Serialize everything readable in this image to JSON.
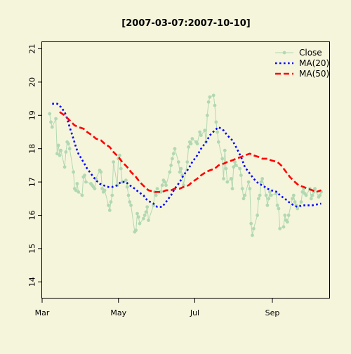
{
  "chart_data": {
    "type": "line",
    "title": "[2007-03-07:2007-10-10]",
    "xlabel": "",
    "ylabel": "",
    "x_range": [
      "2007-03-01",
      "2007-10-17"
    ],
    "ylim": [
      13.5,
      21.2
    ],
    "y_ticks": [
      14,
      15,
      16,
      17,
      18,
      19,
      20,
      21
    ],
    "x_ticks": [
      {
        "date": "2007-03-01",
        "label": "Mar"
      },
      {
        "date": "2007-05-01",
        "label": "May"
      },
      {
        "date": "2007-07-01",
        "label": "Jul"
      },
      {
        "date": "2007-09-01",
        "label": "Sep"
      }
    ],
    "grid": false,
    "legend_position": "top-right",
    "background_color": "#f5f5dc",
    "series": [
      {
        "name": "Close",
        "color": "#b2d8b2",
        "style": "solid-with-markers",
        "points": [
          [
            "2007-03-07",
            19.05
          ],
          [
            "2007-03-08",
            18.8
          ],
          [
            "2007-03-09",
            18.65
          ],
          [
            "2007-03-12",
            18.9
          ],
          [
            "2007-03-13",
            17.85
          ],
          [
            "2007-03-14",
            18.1
          ],
          [
            "2007-03-15",
            17.8
          ],
          [
            "2007-03-16",
            17.95
          ],
          [
            "2007-03-19",
            17.45
          ],
          [
            "2007-03-20",
            17.9
          ],
          [
            "2007-03-21",
            18.2
          ],
          [
            "2007-03-22",
            18.15
          ],
          [
            "2007-03-23",
            18.0
          ],
          [
            "2007-03-26",
            17.3
          ],
          [
            "2007-03-27",
            16.8
          ],
          [
            "2007-03-28",
            16.75
          ],
          [
            "2007-03-29",
            16.95
          ],
          [
            "2007-03-30",
            16.7
          ],
          [
            "2007-04-02",
            16.6
          ],
          [
            "2007-04-03",
            17.15
          ],
          [
            "2007-04-04",
            17.2
          ],
          [
            "2007-04-05",
            17.0
          ],
          [
            "2007-04-09",
            16.95
          ],
          [
            "2007-04-10",
            16.9
          ],
          [
            "2007-04-11",
            16.85
          ],
          [
            "2007-04-12",
            16.8
          ],
          [
            "2007-04-13",
            17.1
          ],
          [
            "2007-04-16",
            17.35
          ],
          [
            "2007-04-17",
            17.3
          ],
          [
            "2007-04-18",
            16.8
          ],
          [
            "2007-04-19",
            16.7
          ],
          [
            "2007-04-20",
            16.75
          ],
          [
            "2007-04-23",
            16.3
          ],
          [
            "2007-04-24",
            16.15
          ],
          [
            "2007-04-25",
            16.4
          ],
          [
            "2007-04-26",
            16.6
          ],
          [
            "2007-04-27",
            17.6
          ],
          [
            "2007-04-30",
            16.9
          ],
          [
            "2007-05-01",
            17.7
          ],
          [
            "2007-05-02",
            17.8
          ],
          [
            "2007-05-03",
            17.4
          ],
          [
            "2007-05-04",
            17.0
          ],
          [
            "2007-05-07",
            17.05
          ],
          [
            "2007-05-08",
            16.85
          ],
          [
            "2007-05-09",
            16.6
          ],
          [
            "2007-05-10",
            16.4
          ],
          [
            "2007-05-11",
            16.3
          ],
          [
            "2007-05-14",
            15.5
          ],
          [
            "2007-05-15",
            15.55
          ],
          [
            "2007-05-16",
            16.05
          ],
          [
            "2007-05-17",
            15.95
          ],
          [
            "2007-05-18",
            15.75
          ],
          [
            "2007-05-21",
            15.9
          ],
          [
            "2007-05-22",
            16.0
          ],
          [
            "2007-05-23",
            16.1
          ],
          [
            "2007-05-24",
            16.25
          ],
          [
            "2007-05-25",
            15.85
          ],
          [
            "2007-05-29",
            16.3
          ],
          [
            "2007-05-30",
            16.7
          ],
          [
            "2007-05-31",
            16.6
          ],
          [
            "2007-06-01",
            16.8
          ],
          [
            "2007-06-04",
            16.7
          ],
          [
            "2007-06-05",
            16.9
          ],
          [
            "2007-06-06",
            17.05
          ],
          [
            "2007-06-07",
            17.0
          ],
          [
            "2007-06-08",
            16.9
          ],
          [
            "2007-06-11",
            17.3
          ],
          [
            "2007-06-12",
            17.5
          ],
          [
            "2007-06-13",
            17.7
          ],
          [
            "2007-06-14",
            17.85
          ],
          [
            "2007-06-15",
            18.0
          ],
          [
            "2007-06-18",
            17.6
          ],
          [
            "2007-06-19",
            17.3
          ],
          [
            "2007-06-20",
            17.4
          ],
          [
            "2007-06-21",
            17.2
          ],
          [
            "2007-06-22",
            16.9
          ],
          [
            "2007-06-25",
            17.6
          ],
          [
            "2007-06-26",
            18.05
          ],
          [
            "2007-06-27",
            18.2
          ],
          [
            "2007-06-28",
            18.15
          ],
          [
            "2007-06-29",
            18.3
          ],
          [
            "2007-07-02",
            18.2
          ],
          [
            "2007-07-03",
            18.15
          ],
          [
            "2007-07-05",
            18.5
          ],
          [
            "2007-07-06",
            18.4
          ],
          [
            "2007-07-09",
            18.55
          ],
          [
            "2007-07-10",
            18.2
          ],
          [
            "2007-07-11",
            19.0
          ],
          [
            "2007-07-12",
            19.4
          ],
          [
            "2007-07-13",
            19.55
          ],
          [
            "2007-07-16",
            19.6
          ],
          [
            "2007-07-17",
            19.3
          ],
          [
            "2007-07-18",
            18.8
          ],
          [
            "2007-07-19",
            18.5
          ],
          [
            "2007-07-20",
            18.2
          ],
          [
            "2007-07-23",
            17.7
          ],
          [
            "2007-07-24",
            17.1
          ],
          [
            "2007-07-25",
            17.95
          ],
          [
            "2007-07-26",
            17.4
          ],
          [
            "2007-07-27",
            17.0
          ],
          [
            "2007-07-30",
            17.1
          ],
          [
            "2007-07-31",
            16.8
          ],
          [
            "2007-08-01",
            17.45
          ],
          [
            "2007-08-02",
            17.6
          ],
          [
            "2007-08-03",
            17.5
          ],
          [
            "2007-08-06",
            17.4
          ],
          [
            "2007-08-07",
            17.2
          ],
          [
            "2007-08-08",
            16.8
          ],
          [
            "2007-08-09",
            16.5
          ],
          [
            "2007-08-10",
            16.6
          ],
          [
            "2007-08-13",
            17.0
          ],
          [
            "2007-08-14",
            16.8
          ],
          [
            "2007-08-15",
            15.75
          ],
          [
            "2007-08-16",
            15.4
          ],
          [
            "2007-08-17",
            15.6
          ],
          [
            "2007-08-20",
            16.0
          ],
          [
            "2007-08-21",
            16.5
          ],
          [
            "2007-08-22",
            16.6
          ],
          [
            "2007-08-23",
            17.0
          ],
          [
            "2007-08-24",
            17.1
          ],
          [
            "2007-08-27",
            16.6
          ],
          [
            "2007-08-28",
            16.3
          ],
          [
            "2007-08-29",
            16.5
          ],
          [
            "2007-08-30",
            16.7
          ],
          [
            "2007-08-31",
            16.6
          ],
          [
            "2007-09-04",
            16.65
          ],
          [
            "2007-09-05",
            16.3
          ],
          [
            "2007-09-06",
            16.2
          ],
          [
            "2007-09-07",
            15.6
          ],
          [
            "2007-09-10",
            15.65
          ],
          [
            "2007-09-11",
            16.0
          ],
          [
            "2007-09-12",
            15.85
          ],
          [
            "2007-09-13",
            15.8
          ],
          [
            "2007-09-14",
            16.0
          ],
          [
            "2007-09-17",
            16.5
          ],
          [
            "2007-09-18",
            16.6
          ],
          [
            "2007-09-19",
            16.4
          ],
          [
            "2007-09-20",
            16.3
          ],
          [
            "2007-09-21",
            16.2
          ],
          [
            "2007-09-24",
            16.4
          ],
          [
            "2007-09-25",
            16.7
          ],
          [
            "2007-09-26",
            16.8
          ],
          [
            "2007-09-27",
            16.65
          ],
          [
            "2007-09-28",
            16.6
          ],
          [
            "2007-10-01",
            16.8
          ],
          [
            "2007-10-02",
            16.5
          ],
          [
            "2007-10-03",
            16.6
          ],
          [
            "2007-10-04",
            16.7
          ],
          [
            "2007-10-05",
            16.8
          ],
          [
            "2007-10-08",
            16.55
          ],
          [
            "2007-10-09",
            16.6
          ],
          [
            "2007-10-10",
            16.7
          ]
        ]
      },
      {
        "name": "MA(20)",
        "color": "#0000ff",
        "style": "dotted",
        "points": [
          [
            "2007-03-09",
            19.35
          ],
          [
            "2007-03-13",
            19.35
          ],
          [
            "2007-03-16",
            19.25
          ],
          [
            "2007-03-19",
            19.1
          ],
          [
            "2007-03-21",
            18.9
          ],
          [
            "2007-03-23",
            18.65
          ],
          [
            "2007-03-26",
            18.3
          ],
          [
            "2007-03-28",
            18.05
          ],
          [
            "2007-03-30",
            17.85
          ],
          [
            "2007-04-03",
            17.6
          ],
          [
            "2007-04-06",
            17.4
          ],
          [
            "2007-04-10",
            17.2
          ],
          [
            "2007-04-13",
            17.05
          ],
          [
            "2007-04-16",
            16.95
          ],
          [
            "2007-04-19",
            16.9
          ],
          [
            "2007-04-23",
            16.85
          ],
          [
            "2007-04-26",
            16.85
          ],
          [
            "2007-04-30",
            16.9
          ],
          [
            "2007-05-03",
            17.0
          ],
          [
            "2007-05-07",
            17.0
          ],
          [
            "2007-05-10",
            16.9
          ],
          [
            "2007-05-14",
            16.8
          ],
          [
            "2007-05-17",
            16.7
          ],
          [
            "2007-05-21",
            16.6
          ],
          [
            "2007-05-24",
            16.45
          ],
          [
            "2007-05-29",
            16.35
          ],
          [
            "2007-06-01",
            16.25
          ],
          [
            "2007-06-05",
            16.25
          ],
          [
            "2007-06-08",
            16.4
          ],
          [
            "2007-06-12",
            16.6
          ],
          [
            "2007-06-15",
            16.8
          ],
          [
            "2007-06-19",
            17.0
          ],
          [
            "2007-06-22",
            17.2
          ],
          [
            "2007-06-26",
            17.4
          ],
          [
            "2007-06-29",
            17.6
          ],
          [
            "2007-07-03",
            17.8
          ],
          [
            "2007-07-06",
            18.0
          ],
          [
            "2007-07-10",
            18.2
          ],
          [
            "2007-07-13",
            18.4
          ],
          [
            "2007-07-17",
            18.55
          ],
          [
            "2007-07-20",
            18.65
          ],
          [
            "2007-07-24",
            18.55
          ],
          [
            "2007-07-27",
            18.4
          ],
          [
            "2007-07-31",
            18.25
          ],
          [
            "2007-08-03",
            18.05
          ],
          [
            "2007-08-07",
            17.75
          ],
          [
            "2007-08-10",
            17.45
          ],
          [
            "2007-08-14",
            17.25
          ],
          [
            "2007-08-17",
            17.1
          ],
          [
            "2007-08-21",
            16.95
          ],
          [
            "2007-08-24",
            16.9
          ],
          [
            "2007-08-28",
            16.8
          ],
          [
            "2007-08-31",
            16.75
          ],
          [
            "2007-09-05",
            16.7
          ],
          [
            "2007-09-07",
            16.6
          ],
          [
            "2007-09-11",
            16.5
          ],
          [
            "2007-09-14",
            16.4
          ],
          [
            "2007-09-18",
            16.3
          ],
          [
            "2007-09-21",
            16.25
          ],
          [
            "2007-09-25",
            16.3
          ],
          [
            "2007-09-28",
            16.3
          ],
          [
            "2007-10-03",
            16.3
          ],
          [
            "2007-10-10",
            16.35
          ]
        ]
      },
      {
        "name": "MA(50)",
        "color": "#ff0000",
        "style": "dashed",
        "points": [
          [
            "2007-03-15",
            19.1
          ],
          [
            "2007-03-19",
            19.0
          ],
          [
            "2007-03-23",
            18.85
          ],
          [
            "2007-03-27",
            18.7
          ],
          [
            "2007-03-30",
            18.65
          ],
          [
            "2007-04-03",
            18.6
          ],
          [
            "2007-04-06",
            18.5
          ],
          [
            "2007-04-10",
            18.4
          ],
          [
            "2007-04-13",
            18.3
          ],
          [
            "2007-04-17",
            18.25
          ],
          [
            "2007-04-20",
            18.15
          ],
          [
            "2007-04-24",
            18.05
          ],
          [
            "2007-04-27",
            17.9
          ],
          [
            "2007-05-01",
            17.75
          ],
          [
            "2007-05-04",
            17.6
          ],
          [
            "2007-05-08",
            17.45
          ],
          [
            "2007-05-11",
            17.3
          ],
          [
            "2007-05-15",
            17.15
          ],
          [
            "2007-05-18",
            17.0
          ],
          [
            "2007-05-22",
            16.85
          ],
          [
            "2007-05-25",
            16.75
          ],
          [
            "2007-05-30",
            16.7
          ],
          [
            "2007-06-01",
            16.7
          ],
          [
            "2007-06-05",
            16.7
          ],
          [
            "2007-06-08",
            16.75
          ],
          [
            "2007-06-12",
            16.75
          ],
          [
            "2007-06-15",
            16.8
          ],
          [
            "2007-06-19",
            16.8
          ],
          [
            "2007-06-22",
            16.85
          ],
          [
            "2007-06-26",
            16.9
          ],
          [
            "2007-06-29",
            17.0
          ],
          [
            "2007-07-03",
            17.1
          ],
          [
            "2007-07-06",
            17.2
          ],
          [
            "2007-07-10",
            17.3
          ],
          [
            "2007-07-13",
            17.35
          ],
          [
            "2007-07-17",
            17.4
          ],
          [
            "2007-07-20",
            17.5
          ],
          [
            "2007-07-24",
            17.55
          ],
          [
            "2007-07-27",
            17.6
          ],
          [
            "2007-07-31",
            17.65
          ],
          [
            "2007-08-03",
            17.7
          ],
          [
            "2007-08-07",
            17.75
          ],
          [
            "2007-08-10",
            17.8
          ],
          [
            "2007-08-14",
            17.85
          ],
          [
            "2007-08-17",
            17.8
          ],
          [
            "2007-08-21",
            17.75
          ],
          [
            "2007-08-24",
            17.7
          ],
          [
            "2007-08-28",
            17.7
          ],
          [
            "2007-08-31",
            17.65
          ],
          [
            "2007-09-05",
            17.6
          ],
          [
            "2007-09-08",
            17.5
          ],
          [
            "2007-09-12",
            17.3
          ],
          [
            "2007-09-15",
            17.15
          ],
          [
            "2007-09-19",
            17.0
          ],
          [
            "2007-09-22",
            16.9
          ],
          [
            "2007-09-26",
            16.85
          ],
          [
            "2007-09-29",
            16.8
          ],
          [
            "2007-10-03",
            16.75
          ],
          [
            "2007-10-06",
            16.7
          ],
          [
            "2007-10-10",
            16.75
          ]
        ]
      }
    ]
  }
}
